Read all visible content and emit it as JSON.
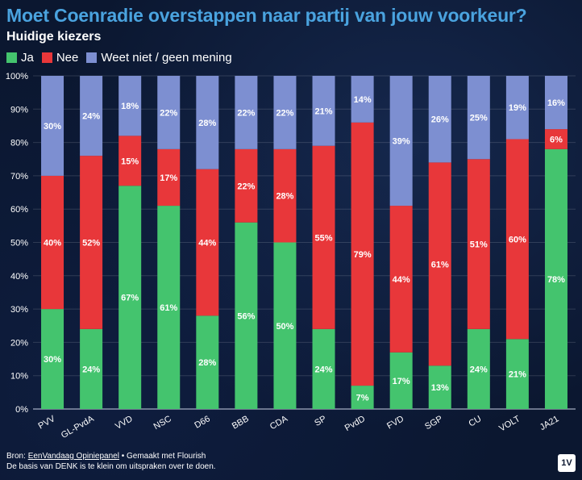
{
  "title": "Moet Coenradie overstappen naar partij van jouw voorkeur?",
  "subtitle": "Huidige kiezers",
  "legend": [
    {
      "label": "Ja",
      "color": "#44c46e"
    },
    {
      "label": "Nee",
      "color": "#e8373a"
    },
    {
      "label": "Weet niet / geen mening",
      "color": "#7d8fd1"
    }
  ],
  "chart_data": {
    "type": "bar",
    "stacked": true,
    "percent_axis": true,
    "grid": true,
    "legend_placement": "top-left",
    "ylim": [
      0,
      100
    ],
    "y_ticks": [
      "0%",
      "10%",
      "20%",
      "30%",
      "40%",
      "50%",
      "60%",
      "70%",
      "80%",
      "90%",
      "100%"
    ],
    "categories": [
      "PVV",
      "GL-PvdA",
      "VVD",
      "NSC",
      "D66",
      "BBB",
      "CDA",
      "SP",
      "PvdD",
      "FVD",
      "SGP",
      "CU",
      "VOLT",
      "JA21"
    ],
    "series": [
      {
        "name": "Ja",
        "color": "#44c46e",
        "values": [
          30,
          24,
          67,
          61,
          28,
          56,
          50,
          24,
          7,
          17,
          13,
          24,
          21,
          78
        ]
      },
      {
        "name": "Nee",
        "color": "#e8373a",
        "values": [
          40,
          52,
          15,
          17,
          44,
          22,
          28,
          55,
          79,
          44,
          61,
          51,
          60,
          6
        ]
      },
      {
        "name": "Weet niet / geen mening",
        "color": "#7d8fd1",
        "values": [
          30,
          24,
          18,
          22,
          28,
          22,
          22,
          21,
          14,
          39,
          26,
          25,
          19,
          16
        ]
      }
    ],
    "value_labels": [
      [
        "30%",
        "24%",
        "67%",
        "61%",
        "28%",
        "56%",
        "50%",
        "24%",
        "7%",
        "17%",
        "13%",
        "24%",
        "21%",
        "78%"
      ],
      [
        "40%",
        "52%",
        "15%",
        "17%",
        "44%",
        "22%",
        "28%",
        "55%",
        "79%",
        "44%",
        "61%",
        "51%",
        "60%",
        "6%"
      ],
      [
        "30%",
        "24%",
        "18%",
        "22%",
        "28%",
        "22%",
        "22%",
        "21%",
        "14%",
        "39%",
        "26%",
        "25%",
        "19%",
        "16%"
      ]
    ]
  },
  "footer": {
    "source_prefix": "Bron: ",
    "source_link": "EenVandaag Opiniepanel",
    "made_with": " • Gemaakt met Flourish",
    "note": "De basis van DENK is te klein om uitspraken over te doen."
  },
  "logo_text": "1V"
}
